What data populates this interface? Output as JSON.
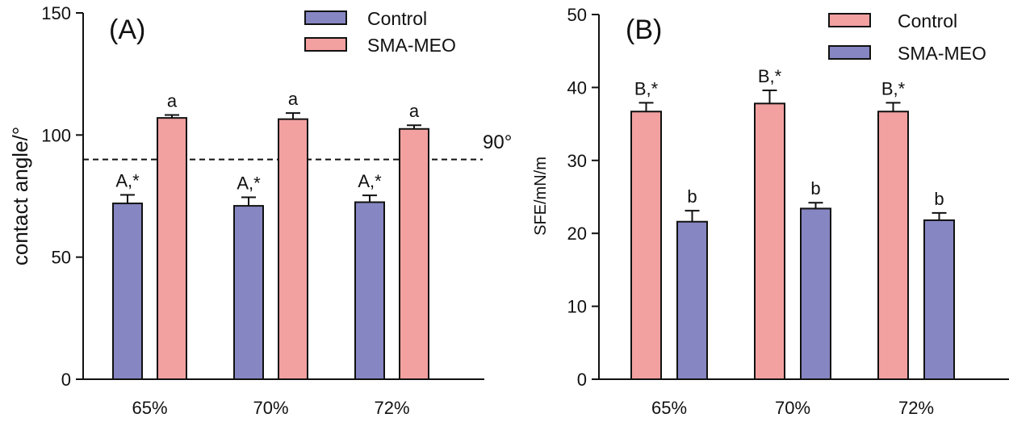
{
  "chart_data": [
    {
      "type": "bar",
      "panel_label": "(A)",
      "title": "",
      "xlabel": "",
      "ylabel": "contact angle/°",
      "ylim": [
        0,
        150
      ],
      "yticks": [
        0,
        50,
        100,
        150
      ],
      "categories": [
        "65%",
        "70%",
        "72%"
      ],
      "series": [
        {
          "name": "Control",
          "color": "#8686c2",
          "values": [
            72,
            71,
            72.5
          ],
          "errors": [
            3.5,
            3.5,
            2.8
          ],
          "labels": [
            "A,*",
            "A,*",
            "A,*"
          ]
        },
        {
          "name": "SMA-MEO",
          "color": "#f2a0a0",
          "values": [
            107,
            106.5,
            102.5
          ],
          "errors": [
            1.2,
            2.5,
            1.5
          ],
          "labels": [
            "a",
            "a",
            "a"
          ]
        }
      ],
      "reference_line": {
        "value": 90,
        "label": "90°",
        "style": "dashed"
      },
      "legend": {
        "position": "top-right",
        "entries": [
          "Control",
          "SMA-MEO"
        ]
      }
    },
    {
      "type": "bar",
      "panel_label": "(B)",
      "title": "",
      "xlabel": "",
      "ylabel": "SFE/mN/m",
      "ylim": [
        0,
        50
      ],
      "yticks": [
        0,
        10,
        20,
        30,
        40,
        50
      ],
      "categories": [
        "65%",
        "70%",
        "72%"
      ],
      "series": [
        {
          "name": "Control",
          "color": "#f2a0a0",
          "values": [
            36.7,
            37.8,
            36.7
          ],
          "errors": [
            1.2,
            1.8,
            1.2
          ],
          "labels": [
            "B,*",
            "B,*",
            "B,*"
          ]
        },
        {
          "name": "SMA-MEO",
          "color": "#8686c2",
          "values": [
            21.6,
            23.4,
            21.8
          ],
          "errors": [
            1.5,
            0.8,
            1.0
          ],
          "labels": [
            "b",
            "b",
            "b"
          ]
        }
      ],
      "legend": {
        "position": "top-right",
        "entries": [
          "Control",
          "SMA-MEO"
        ]
      }
    }
  ]
}
